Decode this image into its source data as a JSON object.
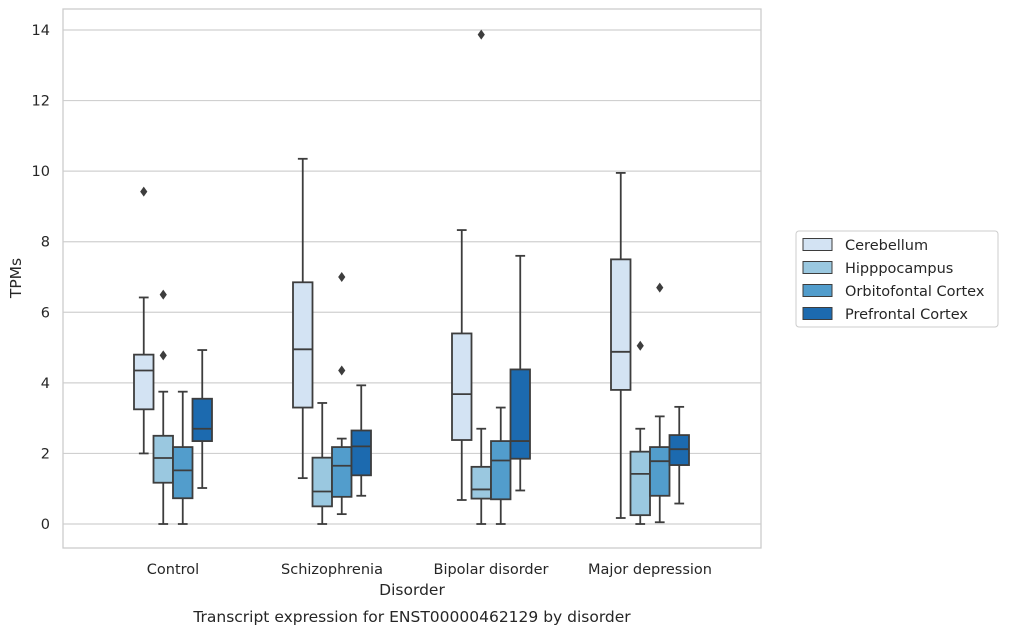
{
  "chart_data": {
    "type": "box",
    "caption": "Transcript expression for ENST00000462129 by disorder",
    "xlabel": "Disorder",
    "ylabel": "TPMs",
    "ylim": [
      -0.68,
      14.6
    ],
    "yticks": [
      0,
      2,
      4,
      6,
      8,
      10,
      12,
      14
    ],
    "grid": "horizontal",
    "legend_position": "right",
    "categories": [
      "Control",
      "Schizophrenia",
      "Bipolar disorder",
      "Major depression"
    ],
    "series": [
      {
        "name": "Cerebellum",
        "color": "#d3e3f3",
        "boxes": [
          {
            "whisker_low": 2.0,
            "q1": 3.25,
            "median": 4.35,
            "q3": 4.8,
            "whisker_high": 6.42,
            "outliers": [
              9.42
            ]
          },
          {
            "whisker_low": 1.3,
            "q1": 3.3,
            "median": 4.95,
            "q3": 6.85,
            "whisker_high": 10.35,
            "outliers": []
          },
          {
            "whisker_low": 0.68,
            "q1": 2.38,
            "median": 3.68,
            "q3": 5.4,
            "whisker_high": 8.33,
            "outliers": []
          },
          {
            "whisker_low": 0.17,
            "q1": 3.8,
            "median": 4.88,
            "q3": 7.5,
            "whisker_high": 9.95,
            "outliers": []
          }
        ]
      },
      {
        "name": "Hipppocampus",
        "color": "#9ac8e0",
        "boxes": [
          {
            "whisker_low": 0.0,
            "q1": 1.17,
            "median": 1.87,
            "q3": 2.5,
            "whisker_high": 3.75,
            "outliers": [
              6.5,
              4.78
            ]
          },
          {
            "whisker_low": 0.0,
            "q1": 0.5,
            "median": 0.92,
            "q3": 1.88,
            "whisker_high": 3.43,
            "outliers": []
          },
          {
            "whisker_low": 0.0,
            "q1": 0.72,
            "median": 0.98,
            "q3": 1.62,
            "whisker_high": 2.7,
            "outliers": [
              13.87
            ]
          },
          {
            "whisker_low": 0.0,
            "q1": 0.25,
            "median": 1.42,
            "q3": 2.05,
            "whisker_high": 2.7,
            "outliers": [
              5.05
            ]
          }
        ]
      },
      {
        "name": "Orbitofontal Cortex",
        "color": "#529dcc",
        "boxes": [
          {
            "whisker_low": 0.0,
            "q1": 0.73,
            "median": 1.52,
            "q3": 2.18,
            "whisker_high": 3.75,
            "outliers": []
          },
          {
            "whisker_low": 0.28,
            "q1": 0.77,
            "median": 1.65,
            "q3": 2.18,
            "whisker_high": 2.42,
            "outliers": [
              7.0,
              4.35
            ]
          },
          {
            "whisker_low": 0.0,
            "q1": 0.7,
            "median": 1.8,
            "q3": 2.35,
            "whisker_high": 3.3,
            "outliers": []
          },
          {
            "whisker_low": 0.05,
            "q1": 0.8,
            "median": 1.78,
            "q3": 2.18,
            "whisker_high": 3.05,
            "outliers": [
              6.7
            ]
          }
        ]
      },
      {
        "name": "Prefrontal Cortex",
        "color": "#1c6aaf",
        "boxes": [
          {
            "whisker_low": 1.02,
            "q1": 2.35,
            "median": 2.7,
            "q3": 3.55,
            "whisker_high": 4.93,
            "outliers": []
          },
          {
            "whisker_low": 0.8,
            "q1": 1.38,
            "median": 2.2,
            "q3": 2.65,
            "whisker_high": 3.93,
            "outliers": []
          },
          {
            "whisker_low": 0.95,
            "q1": 1.85,
            "median": 2.35,
            "q3": 4.38,
            "whisker_high": 7.6,
            "outliers": []
          },
          {
            "whisker_low": 0.58,
            "q1": 1.67,
            "median": 2.12,
            "q3": 2.52,
            "whisker_high": 3.32,
            "outliers": []
          }
        ]
      }
    ]
  }
}
